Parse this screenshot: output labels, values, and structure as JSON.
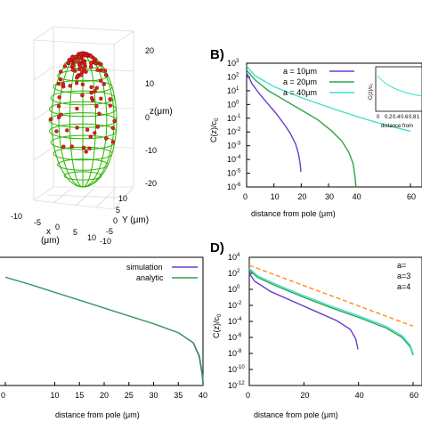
{
  "panels": {
    "A": {
      "z_axis_label": "z(μm)",
      "y_axis_label": "Y (μm)",
      "x_axis_label": "x\n(μm)",
      "x_label_line1": "x",
      "x_label_line2": "(μm)",
      "z_ticks": [
        "20",
        "10",
        "0",
        "-10",
        "-20"
      ],
      "x_ticks": [
        "-10",
        "-5",
        "0",
        "5",
        "10"
      ],
      "y_ticks": [
        "10",
        "5",
        "0",
        "-5",
        "-10"
      ],
      "colors": {
        "mesh": "#2db400",
        "points": "#e01e1e"
      }
    },
    "B": {
      "label": "B)"
    },
    "D": {
      "label": "D)"
    },
    "C": {}
  },
  "chart_data": [
    {
      "id": "B",
      "type": "line",
      "xlabel": "distance from pole (μm)",
      "ylabel": "C(z)/c₀",
      "ylabel_main": "C(z)/c",
      "ylabel_sub": "0",
      "y_scale": "log",
      "ylim_exp": [
        -6,
        3
      ],
      "xlim": [
        0,
        60
      ],
      "x_ticks": [
        "0",
        "10",
        "20",
        "30",
        "40",
        "60"
      ],
      "y_ticks_exp": [
        "3",
        "2",
        "1",
        "0",
        "-1",
        "-2",
        "-3",
        "-4",
        "-5",
        "-6"
      ],
      "legend_position": "top-center",
      "series": [
        {
          "name": "a = 10μm",
          "color": "#6a3ccd",
          "x": [
            0,
            2,
            5,
            8,
            11,
            14,
            16,
            18,
            19,
            19.6,
            19.9
          ],
          "y_exp": [
            2.3,
            1.5,
            0.7,
            0.0,
            -0.7,
            -1.5,
            -2.1,
            -2.9,
            -3.6,
            -4.3,
            -4.9
          ]
        },
        {
          "name": "a = 20μm",
          "color": "#2aa54a",
          "x": [
            0,
            3,
            8,
            14,
            20,
            26,
            31,
            35,
            37.5,
            39,
            39.7,
            40
          ],
          "y_exp": [
            2.5,
            1.8,
            1.0,
            0.3,
            -0.4,
            -1.1,
            -1.9,
            -2.7,
            -3.5,
            -4.3,
            -5.2,
            -6.0
          ]
        },
        {
          "name": "a = 40μm",
          "color": "#3fe0c8",
          "x": [
            0,
            3,
            10,
            20,
            30,
            40,
            50,
            60
          ],
          "y_exp": [
            2.8,
            2.1,
            1.3,
            0.5,
            -0.2,
            -0.85,
            -1.45,
            -1.95
          ]
        }
      ],
      "inset": {
        "xlabel": "distance from",
        "ylabel": "C(z)/c₀",
        "x_ticks": [
          "0",
          "0.2",
          "0.4",
          "0.6",
          "0.8",
          "1"
        ]
      }
    },
    {
      "id": "C",
      "type": "line",
      "xlabel": "distance from pole (μm)",
      "xlim": [
        0,
        40
      ],
      "x_ticks": [
        "0",
        "10",
        "15",
        "20",
        "25",
        "30",
        "35",
        "40"
      ],
      "legend_position": "top-right",
      "series": [
        {
          "name": "simulation",
          "color": "#6a3ccd"
        },
        {
          "name": "analytic",
          "color": "#2aa54a"
        }
      ],
      "x": [
        0,
        5,
        10,
        15,
        20,
        25,
        30,
        35,
        38,
        39.2,
        39.8,
        40
      ],
      "y_norm": [
        0.965,
        0.9,
        0.83,
        0.76,
        0.69,
        0.62,
        0.55,
        0.47,
        0.38,
        0.26,
        0.1,
        0.0
      ]
    },
    {
      "id": "D",
      "type": "line",
      "xlabel": "distance from pole (μm)",
      "ylabel": "C(z)/c₀",
      "ylabel_main": "C(z)/c",
      "ylabel_sub": "0",
      "y_scale": "log",
      "ylim_exp": [
        -12,
        4
      ],
      "xlim": [
        0,
        60
      ],
      "x_ticks": [
        "0",
        "20",
        "40",
        "60"
      ],
      "y_ticks_exp": [
        "4",
        "2",
        "0",
        "-2",
        "-4",
        "-6",
        "-8",
        "-10",
        "-12"
      ],
      "legend_position": "top-right",
      "legend_entries": [
        "a=",
        "a=3",
        "a=4"
      ],
      "series": [
        {
          "color": "#6a3ccd",
          "x": [
            0,
            2,
            8,
            16,
            24,
            32,
            37,
            39,
            39.8
          ],
          "y_exp": [
            2.0,
            1.0,
            -0.3,
            -1.5,
            -2.7,
            -3.9,
            -5.0,
            -6.2,
            -7.5
          ]
        },
        {
          "color": "#2aa54a",
          "x": [
            0,
            3,
            10,
            20,
            30,
            40,
            50,
            56,
            59,
            60
          ],
          "y_exp": [
            2.4,
            1.5,
            0.4,
            -1.0,
            -2.3,
            -3.5,
            -4.8,
            -6.0,
            -7.2,
            -8.2
          ]
        },
        {
          "color": "#3fe0c8",
          "x": [
            0,
            3,
            10,
            20,
            30,
            40,
            50,
            56,
            59,
            60
          ],
          "y_exp": [
            2.6,
            1.7,
            0.6,
            -0.8,
            -2.1,
            -3.3,
            -4.6,
            -5.8,
            -7.0,
            -8.0
          ]
        },
        {
          "color": "#ff8c1a",
          "dashed": true,
          "x": [
            0,
            60
          ],
          "y_exp": [
            3.0,
            -4.6
          ]
        }
      ]
    }
  ]
}
